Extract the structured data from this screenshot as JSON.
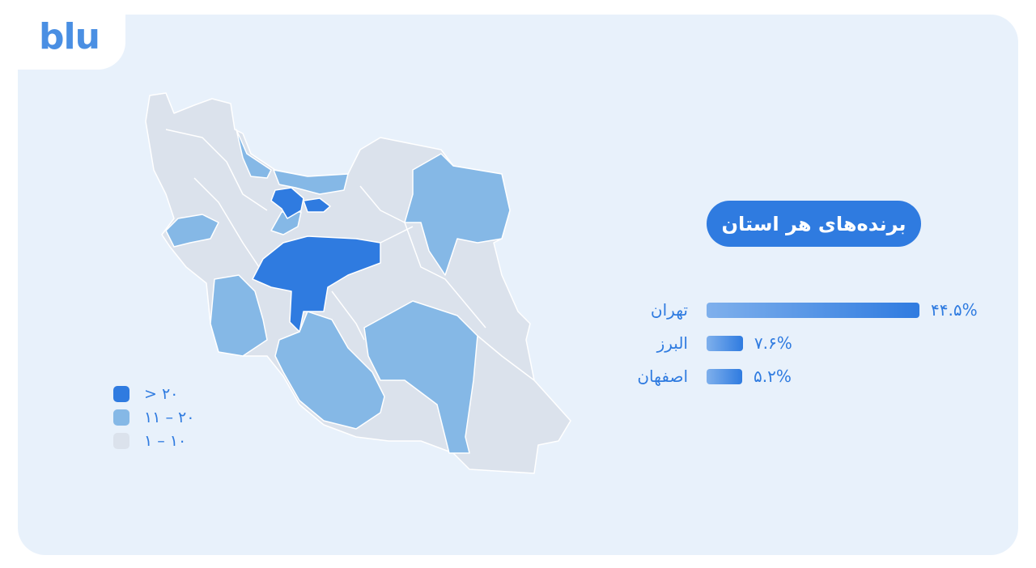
{
  "brand": {
    "logo": "blu",
    "color": "#4a8fe3"
  },
  "title": "برنده‌های هر استان",
  "legend": [
    {
      "label": "> ۲۰",
      "color": "#2f7be0"
    },
    {
      "label": "۱۱ – ۲۰",
      "color": "#85b8e6"
    },
    {
      "label": "۱ – ۱۰",
      "color": "#dbe2ec"
    }
  ],
  "map": {
    "high_provinces": [
      "Tehran",
      "Isfahan"
    ],
    "medium_provinces": [
      "Alborz",
      "Mazandaran",
      "Gilan",
      "Razavi Khorasan",
      "Kermanshah",
      "Khuzestan",
      "Fars",
      "Kerman"
    ]
  },
  "chart_data": {
    "type": "bar",
    "categories": [
      "تهران",
      "البرز",
      "اصفهان"
    ],
    "values": [
      44.5,
      7.6,
      5.2
    ],
    "value_labels": [
      "۴۴.۵%",
      "۷.۶%",
      "۵.۲%"
    ]
  }
}
